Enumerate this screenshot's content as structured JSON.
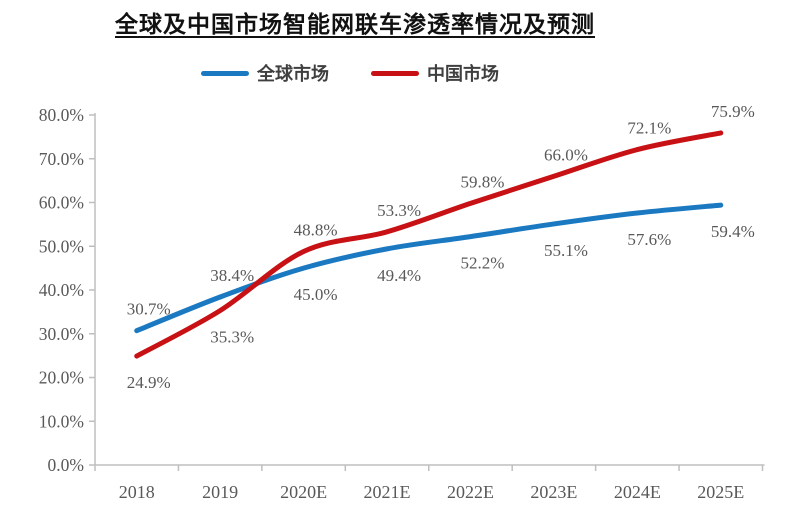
{
  "title": "全球及中国市场智能网联车渗透率情况及预测",
  "legend": {
    "items": [
      {
        "label": "全球市场",
        "color": "#1B79C2"
      },
      {
        "label": "中国市场",
        "color": "#C81114"
      }
    ]
  },
  "chart_data": {
    "type": "line",
    "title": "全球及中国市场智能网联车渗透率情况及预测",
    "categories": [
      "2018",
      "2019",
      "2020E",
      "2021E",
      "2022E",
      "2023E",
      "2024E",
      "2025E"
    ],
    "series": [
      {
        "key": "global-market",
        "name": "全球市场",
        "color": "#1B79C2",
        "values": [
          30.7,
          38.4,
          45.0,
          49.4,
          52.2,
          55.1,
          57.6,
          59.4
        ],
        "data_labels": [
          "30.7%",
          "38.4%",
          "45.0%",
          "49.4%",
          "52.2%",
          "55.1%",
          "57.6%",
          "59.4%"
        ],
        "label_side": [
          "above",
          "above",
          "below",
          "below",
          "below",
          "below",
          "below",
          "below"
        ]
      },
      {
        "key": "china-market",
        "name": "中国市场",
        "color": "#C81114",
        "values": [
          24.9,
          35.3,
          48.8,
          53.3,
          59.8,
          66.0,
          72.1,
          75.9
        ],
        "data_labels": [
          "24.9%",
          "35.3%",
          "48.8%",
          "53.3%",
          "59.8%",
          "66.0%",
          "72.1%",
          "75.9%"
        ],
        "label_side": [
          "below",
          "below",
          "above",
          "above",
          "above",
          "above",
          "above",
          "above"
        ]
      }
    ],
    "xlabel": "",
    "ylabel": "",
    "ylim": [
      0,
      80
    ],
    "ytick_step": 10,
    "yticks": [
      "0.0%",
      "10.0%",
      "20.0%",
      "30.0%",
      "40.0%",
      "50.0%",
      "60.0%",
      "70.0%",
      "80.0%"
    ],
    "grid": false,
    "legend_position": "top",
    "smooth_lines": true,
    "line_width": 5,
    "text_color": "#595959",
    "axis_color": "#bfbfbf"
  }
}
